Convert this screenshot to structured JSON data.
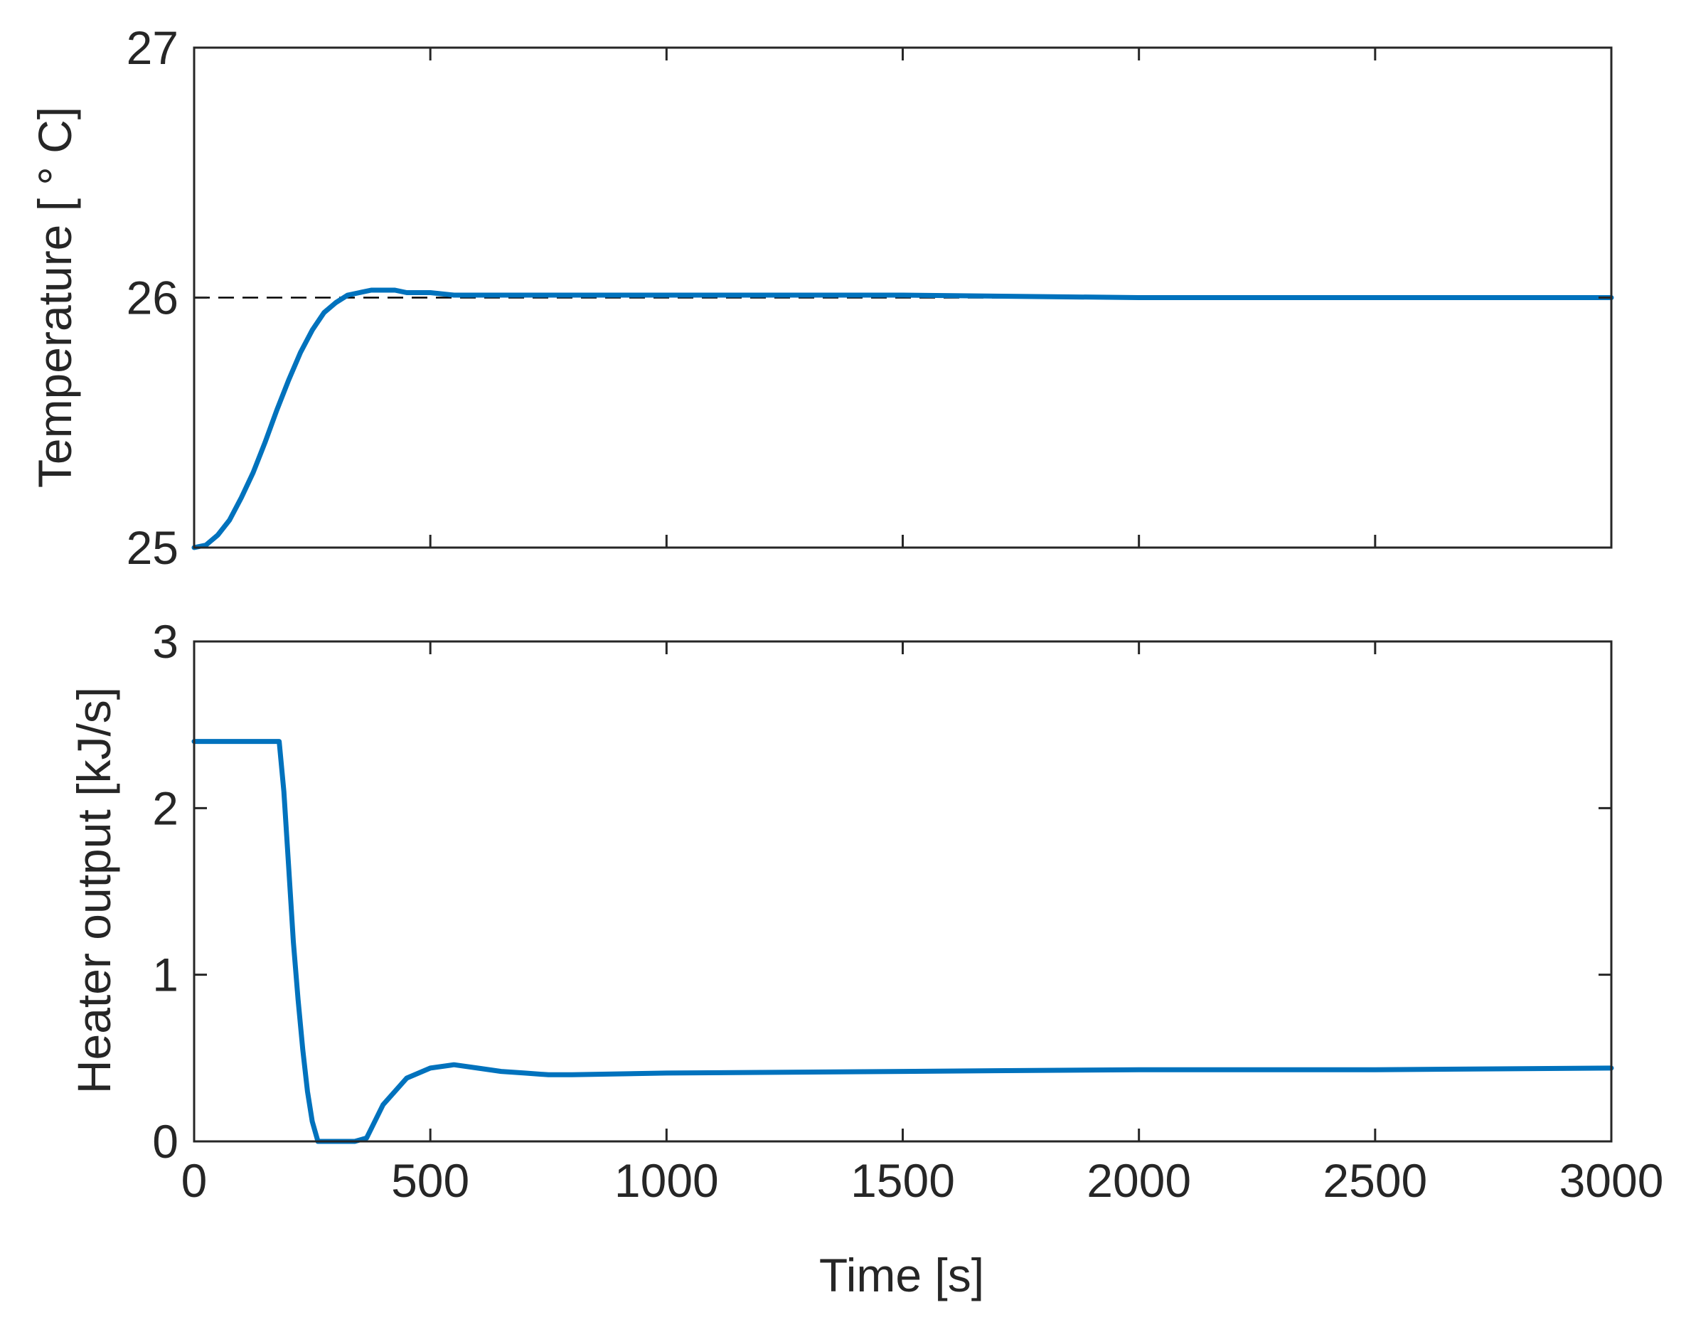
{
  "chart_data": [
    {
      "type": "line",
      "title": "",
      "xlabel": "",
      "ylabel": "Temperature [ ° C]",
      "xlim": [
        0,
        3000
      ],
      "ylim": [
        25,
        27
      ],
      "x_ticks": [
        0,
        500,
        1000,
        1500,
        2000,
        2500,
        3000
      ],
      "x_tick_labels_shown": false,
      "y_ticks": [
        25,
        26,
        27
      ],
      "y_tick_labels": [
        "25",
        "26",
        "27"
      ],
      "grid": false,
      "reference_line": {
        "y": 26,
        "style": "dashed",
        "color": "#000000"
      },
      "series": [
        {
          "color": "#0072BD",
          "x": [
            0,
            25,
            50,
            75,
            100,
            125,
            150,
            175,
            200,
            225,
            250,
            275,
            300,
            325,
            350,
            375,
            400,
            425,
            450,
            500,
            550,
            600,
            700,
            800,
            1000,
            1500,
            2000,
            2500,
            3000
          ],
          "y": [
            25.0,
            25.01,
            25.05,
            25.11,
            25.2,
            25.3,
            25.42,
            25.55,
            25.67,
            25.78,
            25.87,
            25.94,
            25.98,
            26.01,
            26.02,
            26.03,
            26.03,
            26.03,
            26.02,
            26.02,
            26.01,
            26.01,
            26.01,
            26.01,
            26.01,
            26.01,
            26.0,
            26.0,
            26.0
          ]
        }
      ]
    },
    {
      "type": "line",
      "title": "",
      "xlabel": "Time [s]",
      "ylabel": "Heater output [kJ/s]",
      "xlim": [
        0,
        3000
      ],
      "ylim": [
        0,
        3
      ],
      "x_ticks": [
        0,
        500,
        1000,
        1500,
        2000,
        2500,
        3000
      ],
      "x_tick_labels": [
        "0",
        "500",
        "1000",
        "1500",
        "2000",
        "2500",
        "3000"
      ],
      "y_ticks": [
        0,
        1,
        2,
        3
      ],
      "y_tick_labels": [
        "0",
        "1",
        "2",
        "3"
      ],
      "grid": false,
      "series": [
        {
          "color": "#0072BD",
          "x": [
            0,
            180,
            190,
            200,
            210,
            220,
            230,
            240,
            250,
            262,
            300,
            340,
            365,
            400,
            450,
            500,
            550,
            600,
            650,
            700,
            750,
            800,
            1000,
            1500,
            2000,
            2500,
            3000
          ],
          "y": [
            2.4,
            2.4,
            2.1,
            1.65,
            1.2,
            0.85,
            0.55,
            0.3,
            0.12,
            0.0,
            0.0,
            0.0,
            0.02,
            0.22,
            0.38,
            0.44,
            0.46,
            0.44,
            0.42,
            0.41,
            0.4,
            0.4,
            0.41,
            0.42,
            0.43,
            0.43,
            0.44
          ]
        }
      ]
    }
  ]
}
